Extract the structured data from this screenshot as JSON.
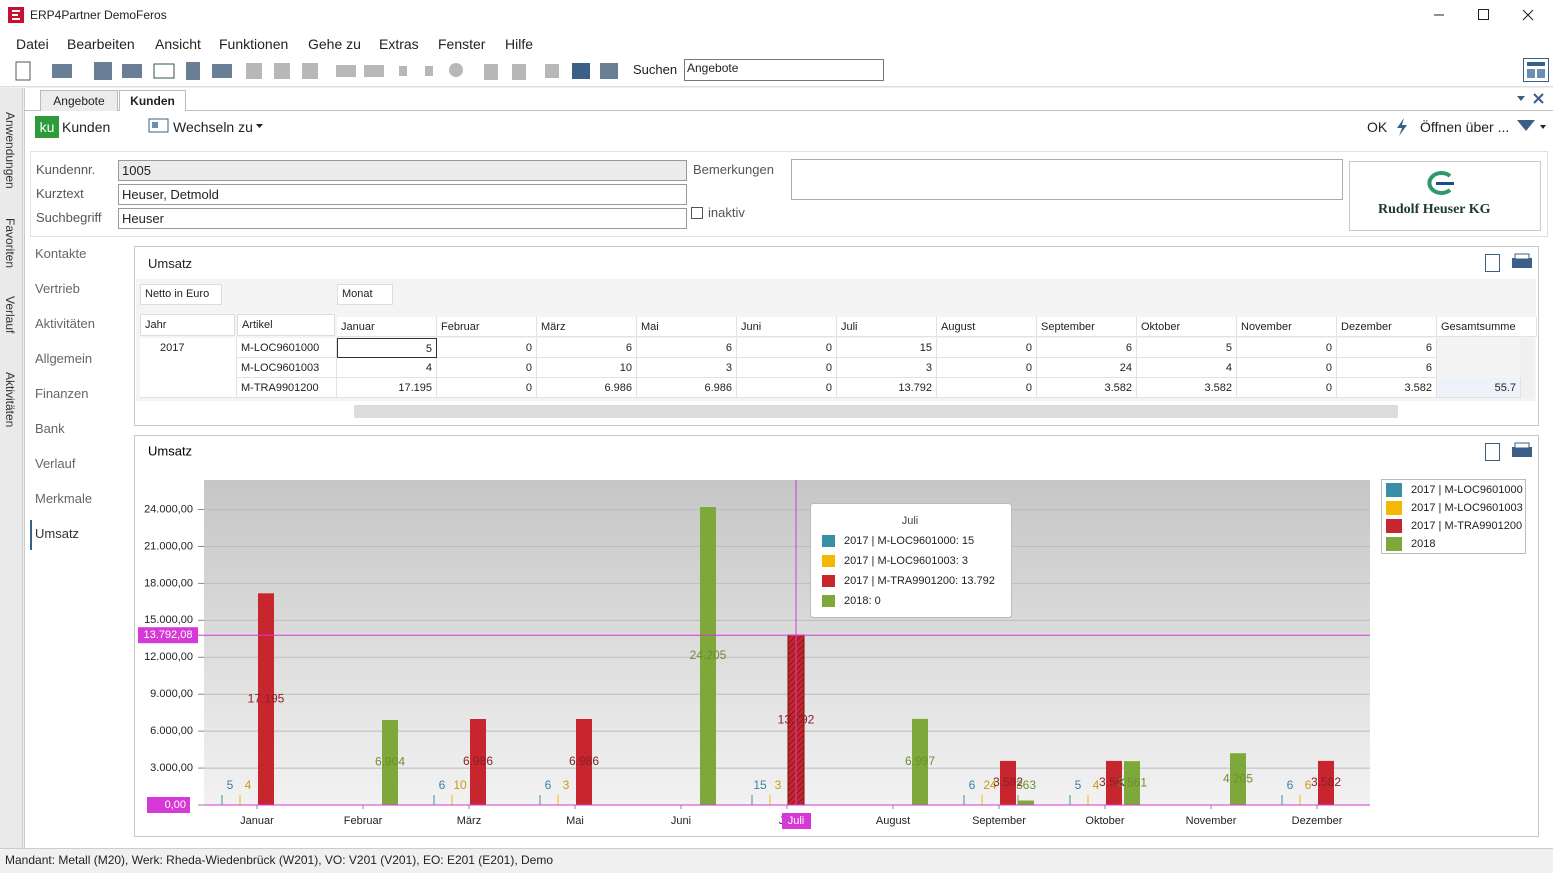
{
  "window": {
    "title": "ERP4Partner DemoFeros"
  },
  "menu": [
    "Datei",
    "Bearbeiten",
    "Ansicht",
    "Funktionen",
    "Gehe zu",
    "Extras",
    "Fenster",
    "Hilfe"
  ],
  "toolbar": {
    "search_label": "Suchen",
    "search_value": "Angebote"
  },
  "side_rail": [
    "Anwendungen",
    "Favoriten",
    "Verlauf",
    "Aktivitäten"
  ],
  "tabs": [
    "Angebote",
    "Kunden"
  ],
  "module": {
    "badge": "ku",
    "name": "Kunden",
    "switch": "Wechseln zu",
    "ok": "OK",
    "open": "Öffnen über ..."
  },
  "form": {
    "fields": [
      {
        "label": "Kundennr.",
        "value": "1005"
      },
      {
        "label": "Kurztext",
        "value": "Heuser, Detmold"
      },
      {
        "label": "Suchbegriff",
        "value": "Heuser"
      }
    ],
    "remarks_label": "Bemerkungen",
    "inactive_label": "inaktiv",
    "logo_text": "Rudolf Heuser KG"
  },
  "nav": [
    "Kontakte",
    "Vertrieb",
    "Aktivitäten",
    "Allgemein",
    "Finanzen",
    "Bank",
    "Verlauf",
    "Merkmale",
    "Umsatz"
  ],
  "pivot": {
    "title": "Umsatz",
    "data_field": "Netto in Euro",
    "column_field": "Monat",
    "row_fields": [
      "Jahr",
      "Artikel"
    ],
    "columns": [
      "Januar",
      "Februar",
      "März",
      "Mai",
      "Juni",
      "Juli",
      "August",
      "September",
      "Oktober",
      "November",
      "Dezember",
      "Gesamtsumme"
    ],
    "year": "2017",
    "rows": [
      {
        "article": "M-LOC9601000",
        "cells": [
          "5",
          "0",
          "6",
          "6",
          "0",
          "15",
          "0",
          "6",
          "5",
          "0",
          "6"
        ]
      },
      {
        "article": "M-LOC9601003",
        "cells": [
          "4",
          "0",
          "10",
          "3",
          "0",
          "3",
          "0",
          "24",
          "4",
          "0",
          "6"
        ]
      },
      {
        "article": "M-TRA9901200",
        "cells": [
          "17.195",
          "0",
          "6.986",
          "6.986",
          "0",
          "13.792",
          "0",
          "3.582",
          "3.582",
          "0",
          "3.582",
          "55.7"
        ]
      }
    ]
  },
  "status": "Mandant: Metall (M20),   Werk: Rheda-Wiedenbrück (W201),   VO: V201 (V201),   EO: E201 (E201), Demo",
  "chart_data": {
    "type": "bar",
    "title": "Umsatz",
    "categories": [
      "Januar",
      "Februar",
      "März",
      "Mai",
      "Juni",
      "Juli",
      "August",
      "September",
      "Oktober",
      "November",
      "Dezember"
    ],
    "series": [
      {
        "name": "2017 | M-LOC9601000",
        "color": "#3a8fa8",
        "values": [
          5,
          0,
          6,
          6,
          0,
          15,
          0,
          6,
          5,
          0,
          6
        ],
        "value_labels": [
          "5",
          null,
          "6",
          "6",
          null,
          "15",
          null,
          "6",
          "5",
          null,
          "6"
        ]
      },
      {
        "name": "2017 | M-LOC9601003",
        "color": "#f5b800",
        "values": [
          4,
          0,
          10,
          3,
          0,
          3,
          0,
          24,
          4,
          0,
          6
        ],
        "value_labels": [
          "4",
          null,
          "10",
          "3",
          null,
          "3",
          null,
          "24",
          "4",
          null,
          "6"
        ]
      },
      {
        "name": "2017 | M-TRA9901200",
        "color": "#c8262f",
        "values": [
          17195,
          0,
          6986,
          6986,
          0,
          13792,
          0,
          3582,
          3582,
          0,
          3582
        ],
        "value_labels": [
          "17.195",
          null,
          "6.986",
          "6.986",
          null,
          "13.792",
          null,
          "3.582",
          "3.582",
          null,
          "3.582"
        ]
      },
      {
        "name": "2018",
        "color": "#7fa83a",
        "values": [
          0,
          6904,
          0,
          0,
          24205,
          0,
          6997,
          363,
          3561,
          4205,
          0
        ],
        "value_labels": [
          null,
          "6.904",
          null,
          null,
          "24.205",
          null,
          "6.997",
          "363",
          "3.561",
          "4.205",
          null
        ]
      }
    ],
    "ylim": [
      0,
      26400
    ],
    "yticks": [
      {
        "value": 0,
        "label": "0,00"
      },
      {
        "value": 3000,
        "label": "3.000,00"
      },
      {
        "value": 6000,
        "label": "6.000,00"
      },
      {
        "value": 9000,
        "label": "9.000,00"
      },
      {
        "value": 12000,
        "label": "12.000,00"
      },
      {
        "value": 15000,
        "label": "15.000,00"
      },
      {
        "value": 18000,
        "label": "18.000,00"
      },
      {
        "value": 21000,
        "label": "21.000,00"
      },
      {
        "value": 24000,
        "label": "24.000,00"
      }
    ],
    "grid": true,
    "legend": "right",
    "crosshair": {
      "value": 13792.08,
      "label": "13.792,08",
      "category": "Juli"
    },
    "tooltip": {
      "title": "Juli",
      "items": [
        "2017 | M-LOC9601000: 15",
        "2017 | M-LOC9601003: 3",
        "2017 | M-TRA9901200: 13.792",
        "2018: 0"
      ]
    }
  }
}
